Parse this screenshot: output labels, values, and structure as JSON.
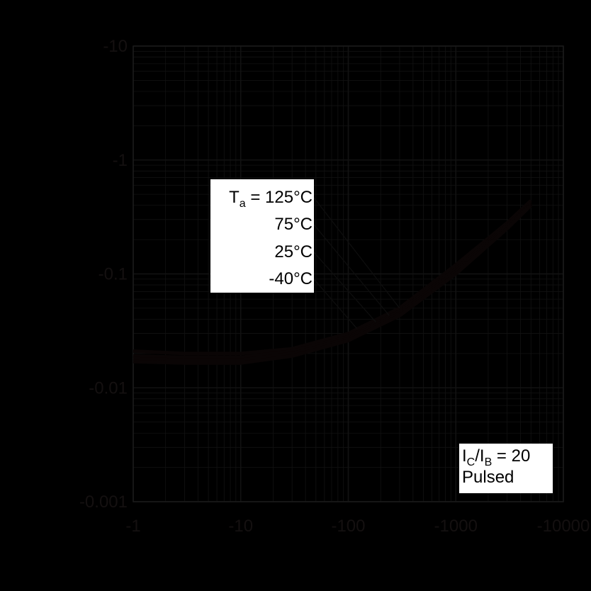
{
  "chart_data": {
    "type": "line",
    "title": "",
    "xlabel": "",
    "ylabel": "",
    "xscale": "log",
    "yscale": "log",
    "xlim": [
      -1,
      -10000
    ],
    "ylim": [
      -0.001,
      -10
    ],
    "grid": true,
    "x_ticks": [
      "-1",
      "-10",
      "-100",
      "-1000",
      "-10000"
    ],
    "y_ticks": [
      "-10",
      "-1",
      "-0.1",
      "-0.01",
      "-0.001"
    ],
    "series": [
      {
        "name": "Ta = 125°C",
        "x": [
          -1,
          -3,
          -10,
          -30,
          -100,
          -300,
          -1000,
          -3000,
          -5000
        ],
        "y": [
          -0.021,
          -0.02,
          -0.02,
          -0.022,
          -0.03,
          -0.05,
          -0.12,
          -0.28,
          -0.44
        ]
      },
      {
        "name": "75°C",
        "x": [
          -1,
          -3,
          -10,
          -30,
          -100,
          -300,
          -1000,
          -3000,
          -5000
        ],
        "y": [
          -0.019,
          -0.0185,
          -0.0185,
          -0.021,
          -0.028,
          -0.047,
          -0.11,
          -0.27,
          -0.42
        ]
      },
      {
        "name": "25°C",
        "x": [
          -1,
          -3,
          -10,
          -30,
          -100,
          -300,
          -1000,
          -3000,
          -5000
        ],
        "y": [
          -0.018,
          -0.0175,
          -0.0175,
          -0.02,
          -0.027,
          -0.045,
          -0.105,
          -0.26,
          -0.41
        ]
      },
      {
        "name": "-40°C",
        "x": [
          -1,
          -3,
          -10,
          -30,
          -100,
          -300,
          -1000,
          -3000,
          -5000
        ],
        "y": [
          -0.017,
          -0.0165,
          -0.0165,
          -0.019,
          -0.026,
          -0.043,
          -0.1,
          -0.25,
          -0.4
        ]
      }
    ],
    "legend": {
      "prefix": "T",
      "prefix_sub": "a",
      "entries": [
        "= 125°C",
        "75°C",
        "25°C",
        "-40°C"
      ]
    },
    "annotation": {
      "line1_I1": "I",
      "line1_sub1": "C",
      "line1_slash": "/I",
      "line1_sub2": "B",
      "line1_rest": " = 20",
      "line2": "Pulsed"
    },
    "colors": {
      "background": "#000000",
      "curve": "#0a0505",
      "grid": "#121212",
      "box": "#ffffff"
    }
  }
}
